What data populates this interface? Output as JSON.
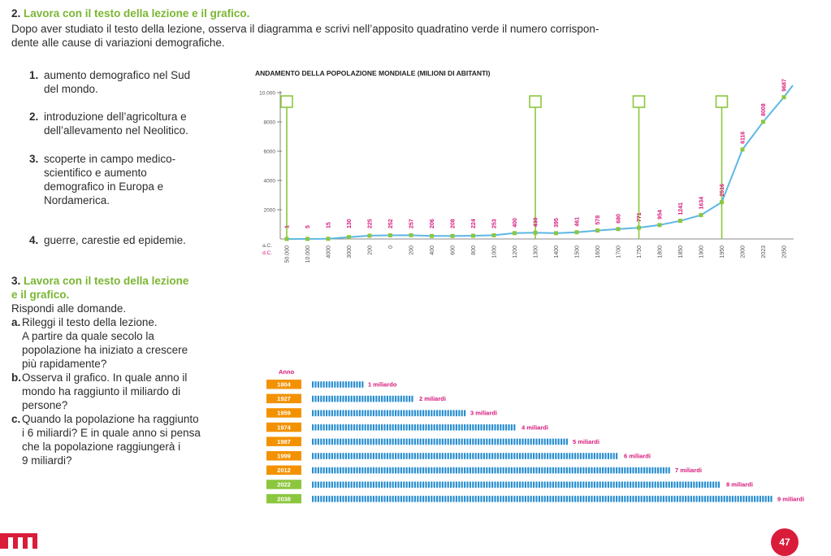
{
  "exercise2": {
    "number": "2.",
    "title": "Lavora con il testo della lezione e il grafico.",
    "intro_line1": "Dopo aver studiato il testo della lezione, osserva il diagramma e scrivi nell’apposito quadratino verde il numero corrispon-",
    "intro_line2": "dente alle cause di variazioni demografiche.",
    "items": [
      {
        "n": "1.",
        "lines": [
          "aumento demografico nel Sud",
          "del mondo."
        ]
      },
      {
        "n": "2.",
        "lines": [
          "introduzione dell’agricoltura e",
          "dell’allevamento nel Neolitico."
        ]
      },
      {
        "n": "3.",
        "lines": [
          "scoperte in campo medico-",
          "scientifico e aumento",
          "demografico in Europa e",
          "Nordamerica."
        ]
      },
      {
        "n": "4.",
        "lines": [
          "guerre, carestie ed epidemie."
        ]
      }
    ]
  },
  "exercise3": {
    "number": "3.",
    "title_line1": "Lavora con il testo della lezione",
    "title_line2": "e il grafico.",
    "instruction": "Rispondi alle domande.",
    "questions": [
      {
        "letter": "a.",
        "lines": [
          "Rileggi il testo della lezione.",
          "A partire da quale secolo la",
          "popolazione ha iniziato a crescere",
          "più rapidamente?"
        ]
      },
      {
        "letter": "b.",
        "lines": [
          "Osserva il grafico. In quale anno il",
          "mondo ha raggiunto il miliardo di",
          "persone?"
        ]
      },
      {
        "letter": "c.",
        "lines": [
          "Quando la popolazione ha raggiunto",
          "i 6 miliardi? E in quale anno si pensa",
          "che la popolazione raggiungerà i",
          "9 miliardi?"
        ]
      }
    ]
  },
  "chart_data": [
    {
      "type": "line",
      "title": "ANDAMENTO DELLA POPOLAZIONE MONDIALE (MILIONI DI ABITANTI)",
      "era_labels": [
        "a.C.",
        "d.C."
      ],
      "y_ticks": [
        "10.000",
        "8000",
        "6000",
        "4000",
        "2000"
      ],
      "ylim": [
        0,
        10000
      ],
      "categories": [
        "50.000",
        "10.000",
        "4000",
        "3000",
        "200",
        "0",
        "200",
        "400",
        "600",
        "800",
        "1000",
        "1200",
        "1300",
        "1400",
        "1500",
        "1600",
        "1700",
        "1750",
        "1800",
        "1850",
        "1900",
        "1950",
        "2000",
        "2023",
        "2050"
      ],
      "value_labels": [
        "1",
        "5",
        "15",
        "130",
        "225",
        "252",
        "257",
        "206",
        "208",
        "224",
        "253",
        "400",
        "430",
        "395",
        "461",
        "578",
        "680",
        "771",
        "954",
        "1241",
        "1634",
        "2516",
        "6116",
        "8008",
        "9687"
      ],
      "values": [
        1,
        5,
        15,
        130,
        225,
        252,
        257,
        206,
        208,
        224,
        253,
        400,
        430,
        395,
        461,
        578,
        680,
        771,
        954,
        1241,
        1634,
        2516,
        6116,
        8008,
        9687
      ],
      "line_color": "#5cb8e4",
      "point_color": "#8cc63f",
      "answer_box_color": "#8cc63f",
      "answer_boxes_at": [
        "50.000",
        "1300",
        "1750",
        "1950"
      ]
    },
    {
      "type": "bar",
      "header": "Anno",
      "categories": [
        "1804",
        "1927",
        "1959",
        "1974",
        "1987",
        "1999",
        "2012",
        "2022",
        "2038"
      ],
      "labels": [
        "1 miliardo",
        "2 miliardi",
        "3 miliardi",
        "4 miliardi",
        "5 miliardi",
        "6 miliardi",
        "7 miliardi",
        "8 miliardi",
        "9 miliardi"
      ],
      "values": [
        1,
        2,
        3,
        4,
        5,
        6,
        7,
        8,
        9
      ],
      "year_box_colors": [
        "#f39200",
        "#f39200",
        "#f39200",
        "#f39200",
        "#f39200",
        "#f39200",
        "#f39200",
        "#8cc63f",
        "#8cc63f"
      ],
      "people_color": "#2a8fd0",
      "label_color": "#d6187c"
    }
  ],
  "footer": {
    "page_number": "47"
  },
  "colors": {
    "green_title": "#7ab632",
    "red": "#d91c3a"
  }
}
